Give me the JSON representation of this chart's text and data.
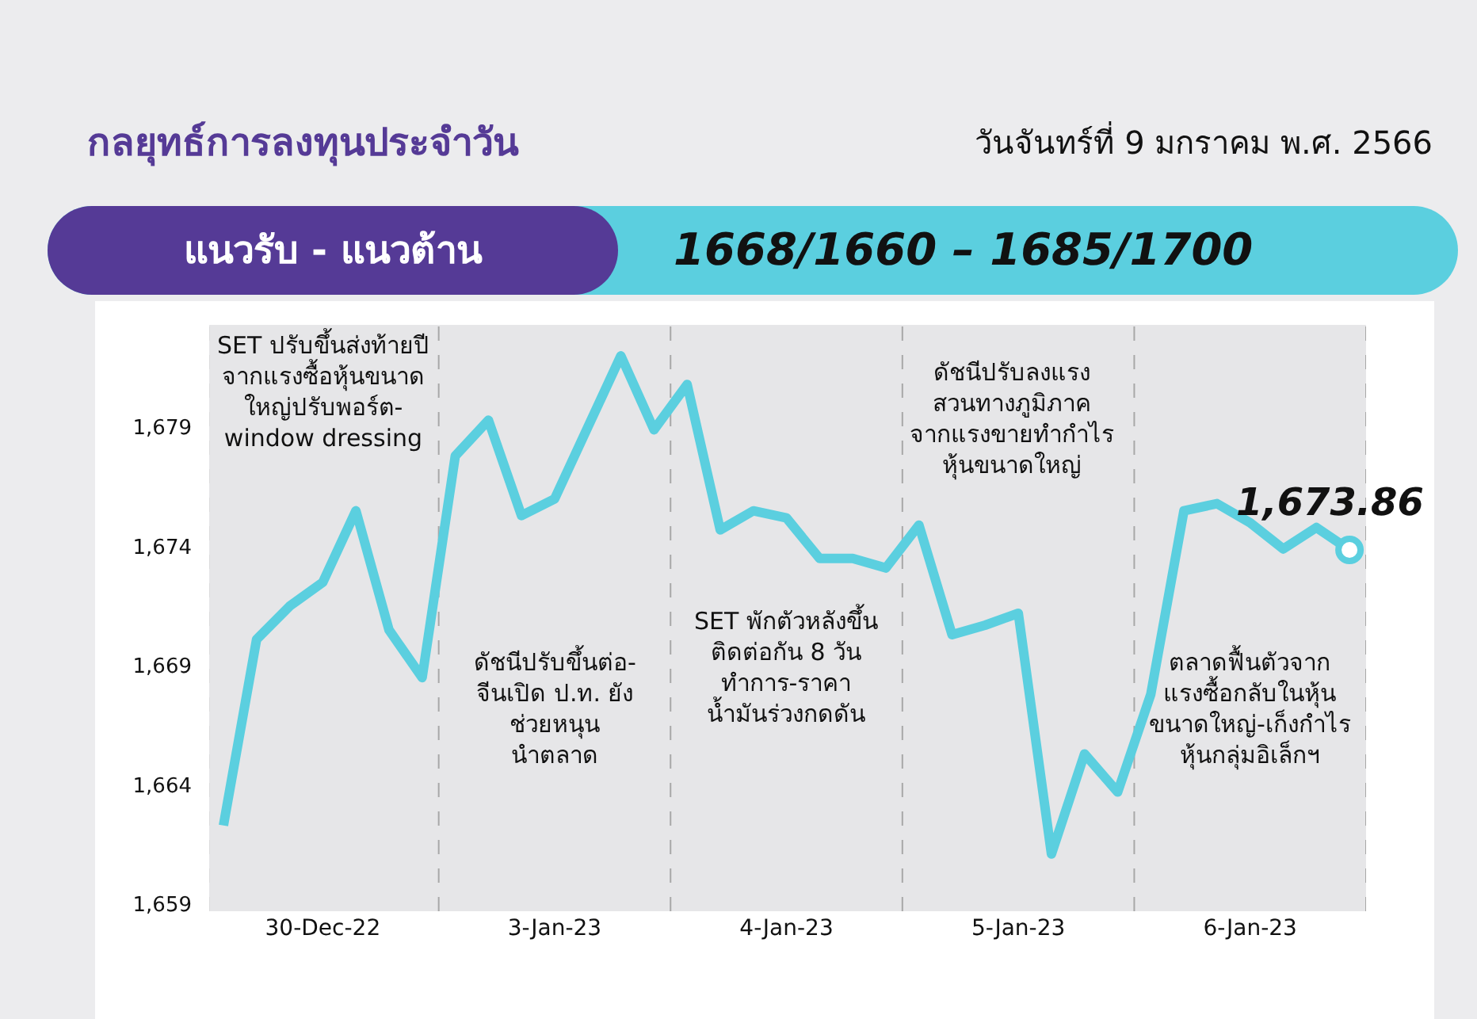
{
  "chart_data": {
    "type": "line",
    "title": "กลยุทธ์การลงทุนประจำวัน",
    "subtitle": "วันจันทร์ที่ 9 มกราคม พ.ศ. 2566",
    "categories": [
      null,
      null,
      null,
      "30-Dec-22",
      null,
      null,
      null,
      null,
      null,
      null,
      "3-Jan-23",
      null,
      null,
      null,
      null,
      null,
      null,
      "4-Jan-23",
      null,
      null,
      null,
      null,
      null,
      null,
      "5-Jan-23",
      null,
      null,
      null,
      null,
      null,
      null,
      "6-Jan-23",
      null,
      null,
      null
    ],
    "series": [
      {
        "color": "#5bcfdf",
        "values": [
          1662.3,
          1670.1,
          1671.5,
          1672.5,
          1675.5,
          1670.5,
          1668.5,
          1677.8,
          1679.3,
          1675.3,
          1676.0,
          1679.0,
          1682.0,
          1678.9,
          1680.8,
          1674.7,
          1675.5,
          1675.2,
          1673.5,
          1673.5,
          1673.1,
          1674.9,
          1670.3,
          1670.7,
          1671.2,
          1661.1,
          1665.3,
          1663.7,
          1667.8,
          1675.5,
          1675.8,
          1675.0,
          1673.9,
          1674.8,
          1673.86
        ]
      }
    ],
    "ylim": [
      1658.7,
      1683.3
    ],
    "yticks": [
      {
        "value": 1659,
        "label": "1,659"
      },
      {
        "value": 1664,
        "label": "1,664"
      },
      {
        "value": 1669,
        "label": "1,669"
      },
      {
        "value": 1674,
        "label": "1,674"
      },
      {
        "value": 1679,
        "label": "1,679"
      }
    ],
    "grid": false,
    "marker": "none",
    "line_style": "solid",
    "annotations": [
      "แนวรับ - แนวต้าน",
      "1668/1660 – 1685/1700",
      "SET ปรับขึ้นส่งท้ายปี\nจากแรงซื้อหุ้นขนาด\nใหญ่ปรับพอร์ต-\nwindow dressing",
      "ดัชนีปรับขึ้นต่อ-\nจีนเปิด ป.ท. ยัง\nช่วยหนุน\nนำตลาด",
      "SET พักตัวหลังขึ้น\nติดต่อกัน 8 วัน\nทำการ-ราคา\nน้ำมันร่วงกดดัน",
      "ดัชนีปรับลงแรง\nสวนทางภูมิภาค\nจากแรงขายทำกำไร\nหุ้นขนาดใหญ่",
      "ตลาดฟื้นตัวจาก\nแรงซื้อกลับในหุ้น\nขนาดใหญ่-เก็งกำไร\nหุ้นกลุ่มอิเล็กฯ",
      {
        "text": "1,673.86",
        "y": 1673.86
      }
    ]
  }
}
